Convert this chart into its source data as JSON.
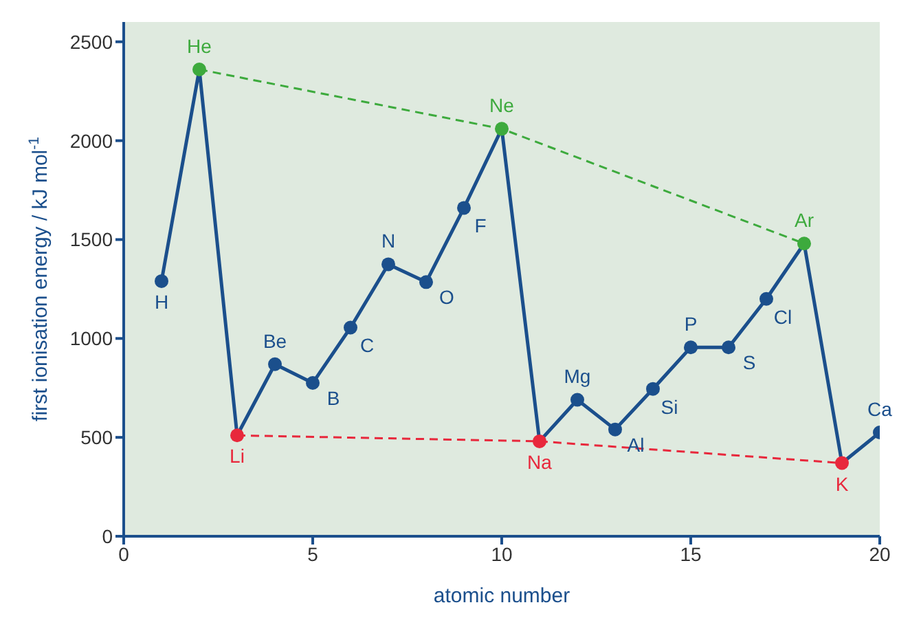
{
  "chart_data": {
    "type": "line",
    "xlabel": "atomic number",
    "ylabel": "first ionisation energy / kJ mol$^{-1}$",
    "xlim": [
      0,
      20
    ],
    "xticks": [
      0,
      5,
      10,
      15,
      20
    ],
    "ylim": [
      0,
      2600
    ],
    "yticks": [
      0,
      500,
      1000,
      1500,
      2000,
      2500
    ],
    "grid": false,
    "marker": "circle",
    "series": [
      {
        "color": "#1b4f8c",
        "x": [
          1,
          2,
          3,
          4,
          5,
          6,
          7,
          8,
          9,
          10,
          11,
          12,
          13,
          14,
          15,
          16,
          17,
          18,
          19,
          20
        ],
        "values": [
          1290,
          2360,
          510,
          870,
          775,
          1055,
          1375,
          1285,
          1660,
          2060,
          480,
          690,
          540,
          745,
          955,
          955,
          1200,
          1480,
          370,
          525
        ],
        "colors": [
          "#1b4f8c",
          "#3daa3d",
          "#e8283c",
          "#1b4f8c",
          "#1b4f8c",
          "#1b4f8c",
          "#1b4f8c",
          "#1b4f8c",
          "#1b4f8c",
          "#3daa3d",
          "#e8283c",
          "#1b4f8c",
          "#1b4f8c",
          "#1b4f8c",
          "#1b4f8c",
          "#1b4f8c",
          "#1b4f8c",
          "#3daa3d",
          "#e8283c",
          "#1b4f8c"
        ]
      },
      {
        "color": "#3daa3d",
        "x": [
          2,
          10,
          18
        ],
        "values": [
          2360,
          2060,
          1480
        ],
        "line_style": "dashed",
        "marker": "none"
      },
      {
        "color": "#e8283c",
        "x": [
          3,
          11,
          19
        ],
        "values": [
          510,
          480,
          370
        ],
        "line_style": "dashed",
        "marker": "none"
      }
    ],
    "annotations": [
      {
        "text": "H",
        "x": 1,
        "y": 1290
      },
      {
        "text": "He",
        "x": 2,
        "y": 2360
      },
      {
        "text": "Li",
        "x": 3,
        "y": 510
      },
      {
        "text": "Be",
        "x": 4,
        "y": 870
      },
      {
        "text": "B",
        "x": 5,
        "y": 775
      },
      {
        "text": "C",
        "x": 6,
        "y": 1055
      },
      {
        "text": "N",
        "x": 7,
        "y": 1375
      },
      {
        "text": "O",
        "x": 8,
        "y": 1285
      },
      {
        "text": "F",
        "x": 9,
        "y": 1660
      },
      {
        "text": "Ne",
        "x": 10,
        "y": 2060
      },
      {
        "text": "Na",
        "x": 11,
        "y": 480
      },
      {
        "text": "Mg",
        "x": 12,
        "y": 690
      },
      {
        "text": "Al",
        "x": 13,
        "y": 540
      },
      {
        "text": "Si",
        "x": 14,
        "y": 745
      },
      {
        "text": "P",
        "x": 15,
        "y": 955
      },
      {
        "text": "S",
        "x": 16,
        "y": 955
      },
      {
        "text": "Cl",
        "x": 17,
        "y": 1200
      },
      {
        "text": "Ar",
        "x": 18,
        "y": 1480
      },
      {
        "text": "K",
        "x": 19,
        "y": 370
      },
      {
        "text": "Ca",
        "x": 20,
        "y": 525
      }
    ]
  }
}
